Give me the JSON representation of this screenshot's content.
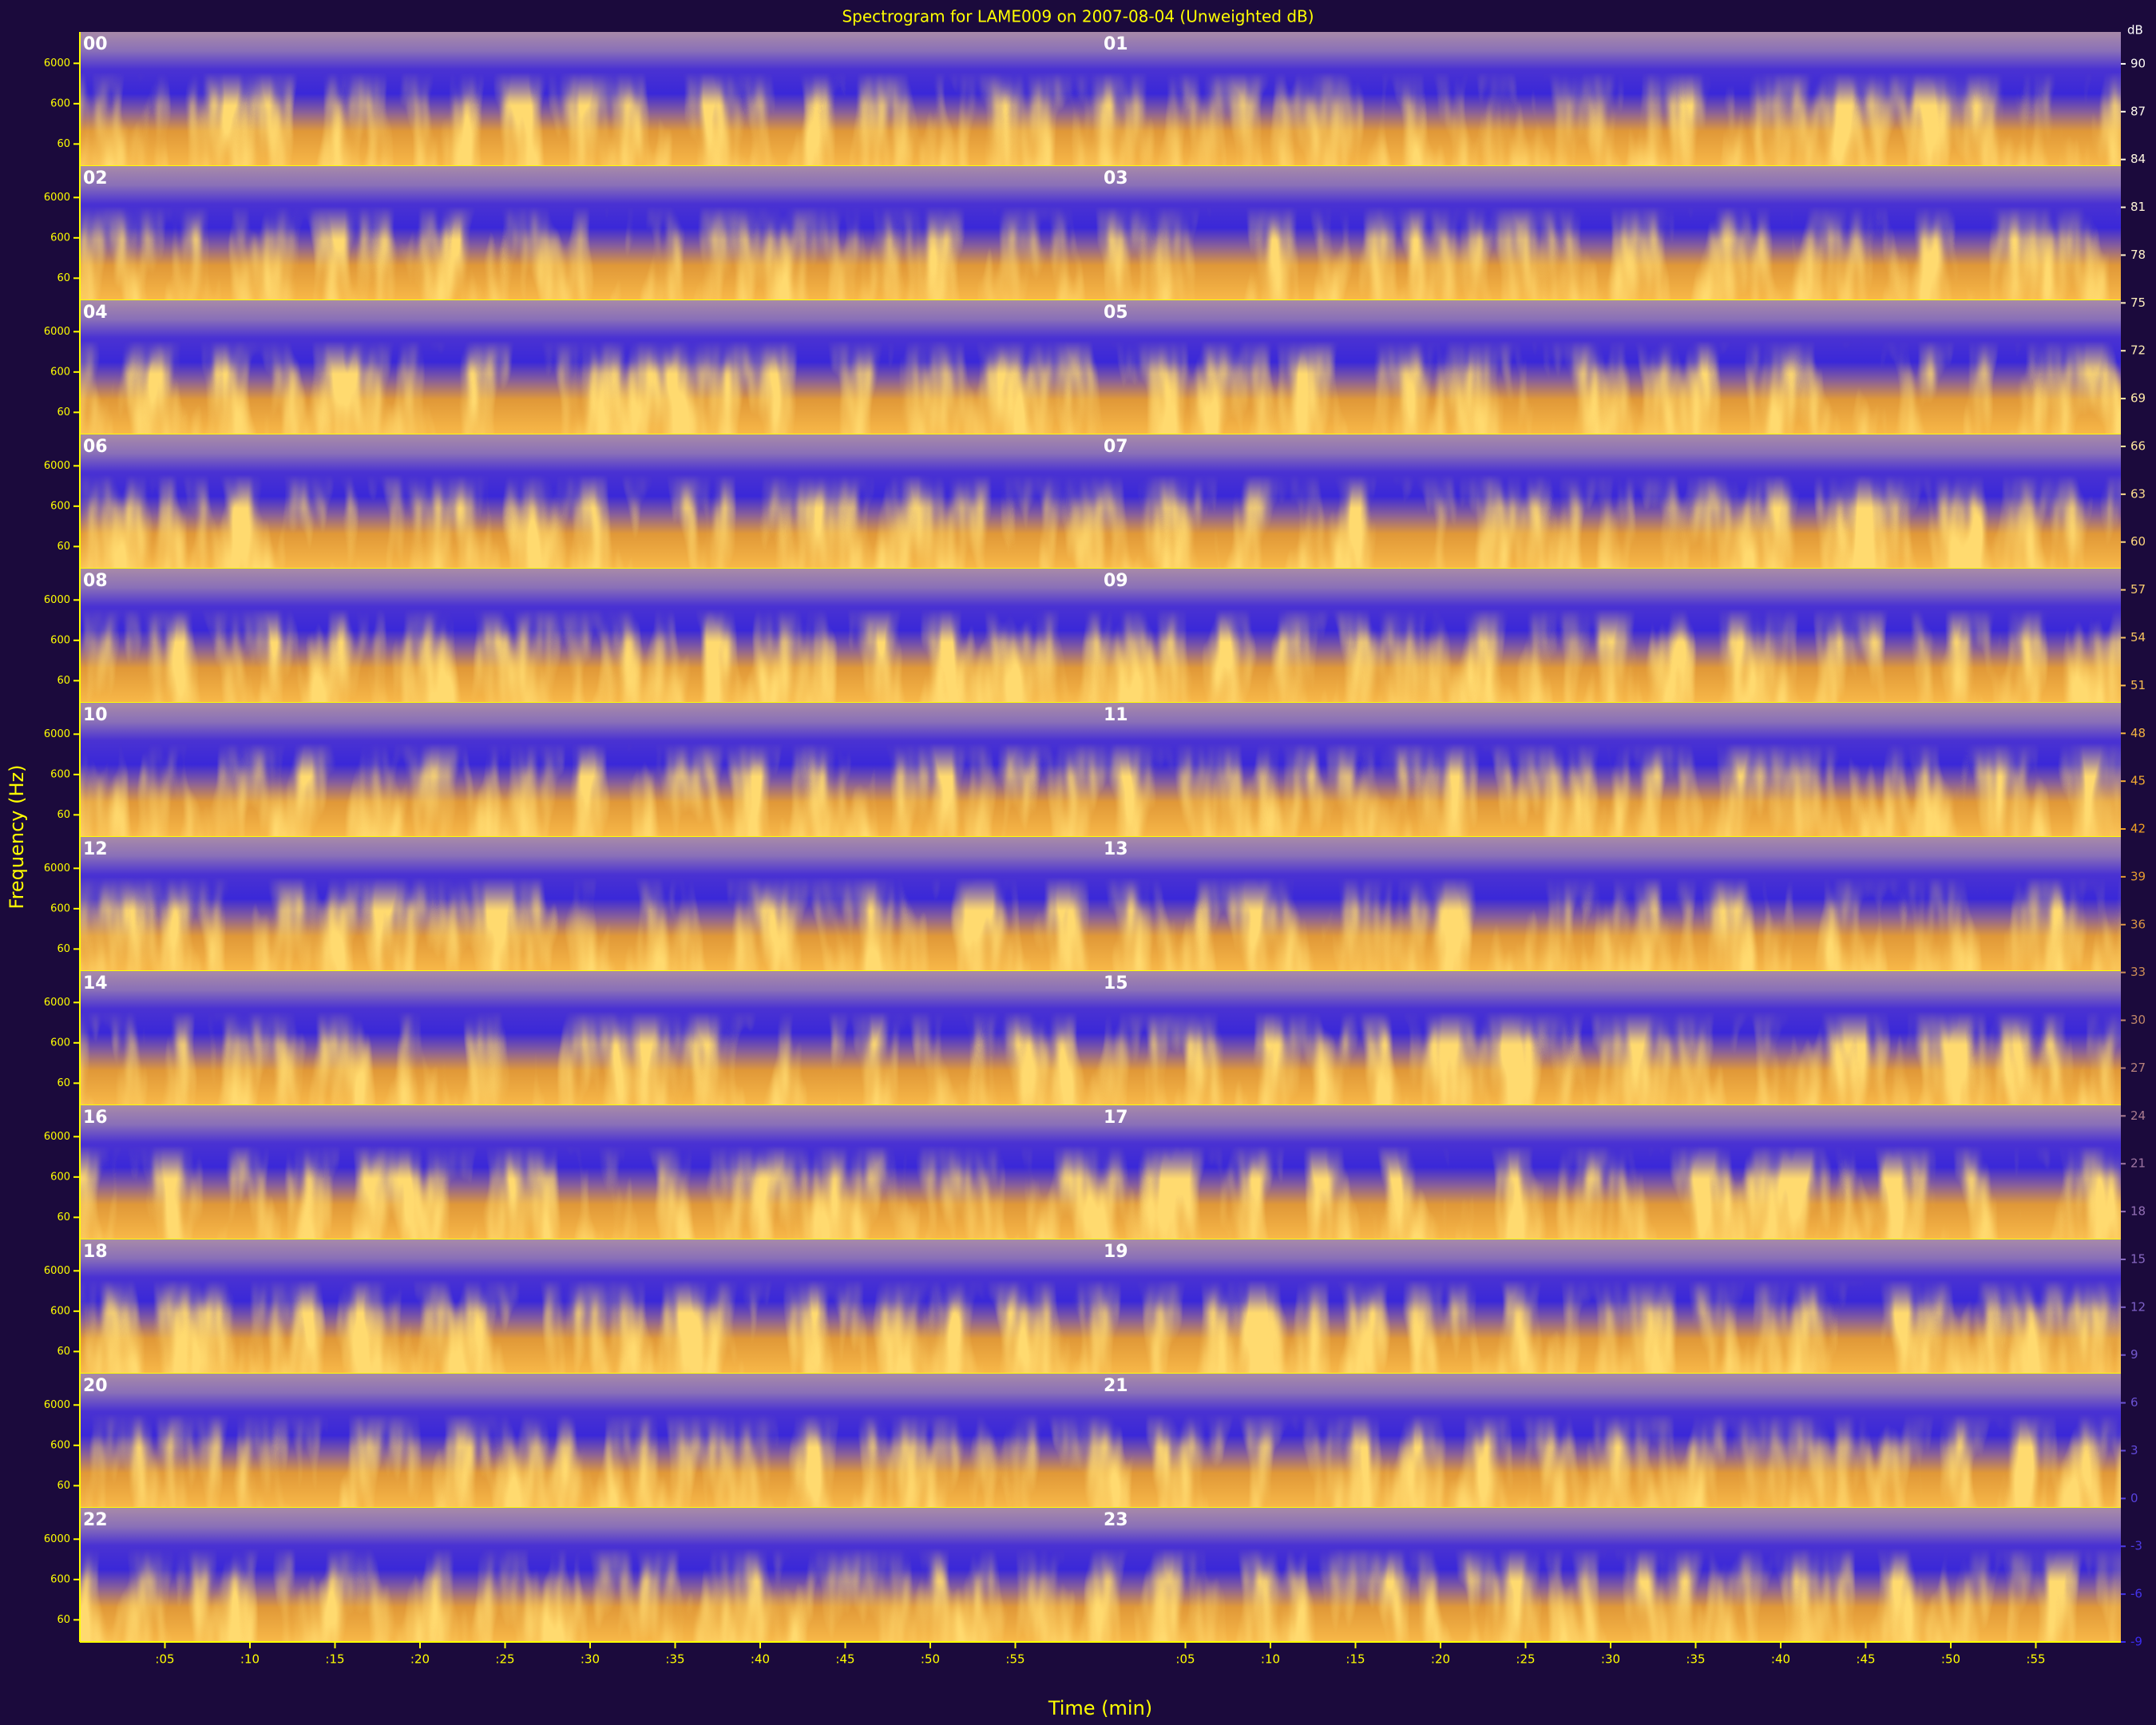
{
  "chart_data": {
    "type": "spectrogram",
    "title": "Spectrogram for LAME009 on 2007-08-04 (Unweighted dB)",
    "xlabel": "Time (min)",
    "ylabel": "Frequency (Hz)",
    "rows": [
      [
        "00",
        "01"
      ],
      [
        "02",
        "03"
      ],
      [
        "04",
        "05"
      ],
      [
        "06",
        "07"
      ],
      [
        "08",
        "09"
      ],
      [
        "10",
        "11"
      ],
      [
        "12",
        "13"
      ],
      [
        "14",
        "15"
      ],
      [
        "16",
        "17"
      ],
      [
        "18",
        "19"
      ],
      [
        "20",
        "21"
      ],
      [
        "22",
        "23"
      ]
    ],
    "xlim": [
      0,
      60
    ],
    "xticks": [
      {
        "value": 5,
        "label": ":05"
      },
      {
        "value": 10,
        "label": ":10"
      },
      {
        "value": 15,
        "label": ":15"
      },
      {
        "value": 20,
        "label": ":20"
      },
      {
        "value": 25,
        "label": ":25"
      },
      {
        "value": 30,
        "label": ":30"
      },
      {
        "value": 35,
        "label": ":35"
      },
      {
        "value": 40,
        "label": ":40"
      },
      {
        "value": 45,
        "label": ":45"
      },
      {
        "value": 50,
        "label": ":50"
      },
      {
        "value": 55,
        "label": ":55"
      }
    ],
    "ylim": [
      17,
      36000
    ],
    "yticks": [
      60,
      600,
      6000
    ],
    "log_y": true,
    "colorbar": {
      "label": "dB",
      "lim": [
        -9,
        92
      ],
      "ticks": [
        90,
        87,
        84,
        81,
        78,
        75,
        72,
        69,
        66,
        63,
        60,
        57,
        54,
        51,
        48,
        45,
        42,
        39,
        36,
        33,
        30,
        27,
        24,
        21,
        18,
        15,
        12,
        9,
        6,
        3,
        0,
        -3,
        -6,
        -9
      ],
      "colors": [
        "#3a2cf0",
        "#8c6cc0",
        "#f0a020",
        "#ffe8a0",
        "#ffffff"
      ]
    }
  }
}
